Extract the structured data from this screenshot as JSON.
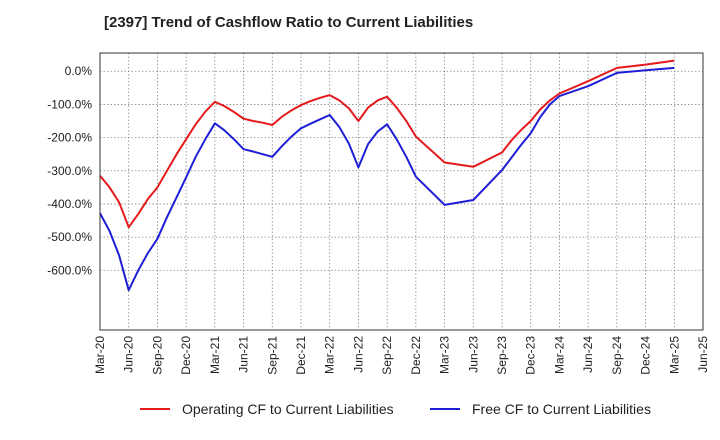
{
  "chart_data": {
    "type": "line",
    "title": "[2397]  Trend of Cashflow Ratio to Current Liabilities",
    "xlabel": "",
    "ylabel": "",
    "ylim": [
      -780,
      55
    ],
    "y_ticks": [
      0,
      -100,
      -200,
      -300,
      -400,
      -500,
      -600
    ],
    "y_tick_labels": [
      "0.0%",
      "-100.0%",
      "-200.0%",
      "-300.0%",
      "-400.0%",
      "-500.0%",
      "-600.0%"
    ],
    "x_tick_labels": [
      "Mar-20",
      "Jun-20",
      "Sep-20",
      "Dec-20",
      "Mar-21",
      "Jun-21",
      "Sep-21",
      "Dec-21",
      "Mar-22",
      "Jun-22",
      "Sep-22",
      "Dec-22",
      "Mar-23",
      "Jun-23",
      "Sep-23",
      "Dec-23",
      "Mar-24",
      "Jun-24",
      "Sep-24",
      "Dec-24",
      "Mar-25",
      "Jun-25"
    ],
    "grid": true,
    "legend_position": "bottom",
    "series": [
      {
        "name": "Operating CF to Current Liabilities",
        "color": "#e41a1c",
        "points": [
          [
            "Mar-20",
            -315
          ],
          [
            "Apr-20",
            -350
          ],
          [
            "May-20",
            -395
          ],
          [
            "Jun-20",
            -470
          ],
          [
            "Jul-20",
            -430
          ],
          [
            "Aug-20",
            -385
          ],
          [
            "Sep-20",
            -350
          ],
          [
            "Oct-20",
            -300
          ],
          [
            "Nov-20",
            -250
          ],
          [
            "Dec-20",
            -205
          ],
          [
            "Jan-21",
            -160
          ],
          [
            "Feb-21",
            -122
          ],
          [
            "Mar-21",
            -92
          ],
          [
            "Apr-21",
            -105
          ],
          [
            "May-21",
            -123
          ],
          [
            "Jun-21",
            -143
          ],
          [
            "Jul-21",
            -150
          ],
          [
            "Aug-21",
            -155
          ],
          [
            "Sep-21",
            -162
          ],
          [
            "Oct-21",
            -137
          ],
          [
            "Nov-21",
            -118
          ],
          [
            "Dec-21",
            -102
          ],
          [
            "Jan-22",
            -90
          ],
          [
            "Feb-22",
            -80
          ],
          [
            "Mar-22",
            -72
          ],
          [
            "Apr-22",
            -88
          ],
          [
            "May-22",
            -112
          ],
          [
            "Jun-22",
            -150
          ],
          [
            "Jul-22",
            -110
          ],
          [
            "Aug-22",
            -88
          ],
          [
            "Sep-22",
            -77
          ],
          [
            "Oct-22",
            -110
          ],
          [
            "Nov-22",
            -150
          ],
          [
            "Dec-22",
            -197
          ],
          [
            "Mar-23",
            -275
          ],
          [
            "Jun-23",
            -288
          ],
          [
            "Sep-23",
            -245
          ],
          [
            "Oct-23",
            -208
          ],
          [
            "Nov-23",
            -177
          ],
          [
            "Dec-23",
            -150
          ],
          [
            "Jan-24",
            -115
          ],
          [
            "Feb-24",
            -88
          ],
          [
            "Mar-24",
            -67
          ],
          [
            "Jun-24",
            -30
          ],
          [
            "Sep-24",
            10
          ],
          [
            "Dec-24",
            20
          ],
          [
            "Mar-25",
            32
          ]
        ]
      },
      {
        "name": "Free CF to Current Liabilities",
        "color": "#1f1fd6",
        "points": [
          [
            "Mar-20",
            -428
          ],
          [
            "Apr-20",
            -482
          ],
          [
            "May-20",
            -555
          ],
          [
            "Jun-20",
            -660
          ],
          [
            "Jul-20",
            -600
          ],
          [
            "Aug-20",
            -548
          ],
          [
            "Sep-20",
            -505
          ],
          [
            "Oct-20",
            -440
          ],
          [
            "Nov-20",
            -380
          ],
          [
            "Dec-20",
            -320
          ],
          [
            "Jan-21",
            -258
          ],
          [
            "Feb-21",
            -205
          ],
          [
            "Mar-21",
            -157
          ],
          [
            "Apr-21",
            -178
          ],
          [
            "May-21",
            -205
          ],
          [
            "Jun-21",
            -235
          ],
          [
            "Jul-21",
            -242
          ],
          [
            "Aug-21",
            -250
          ],
          [
            "Sep-21",
            -258
          ],
          [
            "Oct-21",
            -226
          ],
          [
            "Nov-21",
            -197
          ],
          [
            "Dec-21",
            -172
          ],
          [
            "Jan-22",
            -158
          ],
          [
            "Feb-22",
            -145
          ],
          [
            "Mar-22",
            -132
          ],
          [
            "Apr-22",
            -168
          ],
          [
            "May-22",
            -218
          ],
          [
            "Jun-22",
            -290
          ],
          [
            "Jul-22",
            -220
          ],
          [
            "Aug-22",
            -182
          ],
          [
            "Sep-22",
            -160
          ],
          [
            "Oct-22",
            -205
          ],
          [
            "Nov-22",
            -258
          ],
          [
            "Dec-22",
            -318
          ],
          [
            "Mar-23",
            -403
          ],
          [
            "Jun-23",
            -388
          ],
          [
            "Sep-23",
            -298
          ],
          [
            "Oct-23",
            -260
          ],
          [
            "Nov-23",
            -222
          ],
          [
            "Dec-23",
            -187
          ],
          [
            "Jan-24",
            -138
          ],
          [
            "Feb-24",
            -100
          ],
          [
            "Mar-24",
            -75
          ],
          [
            "Jun-24",
            -45
          ],
          [
            "Sep-24",
            -5
          ],
          [
            "Dec-24",
            3
          ],
          [
            "Mar-25",
            10
          ]
        ]
      }
    ]
  }
}
